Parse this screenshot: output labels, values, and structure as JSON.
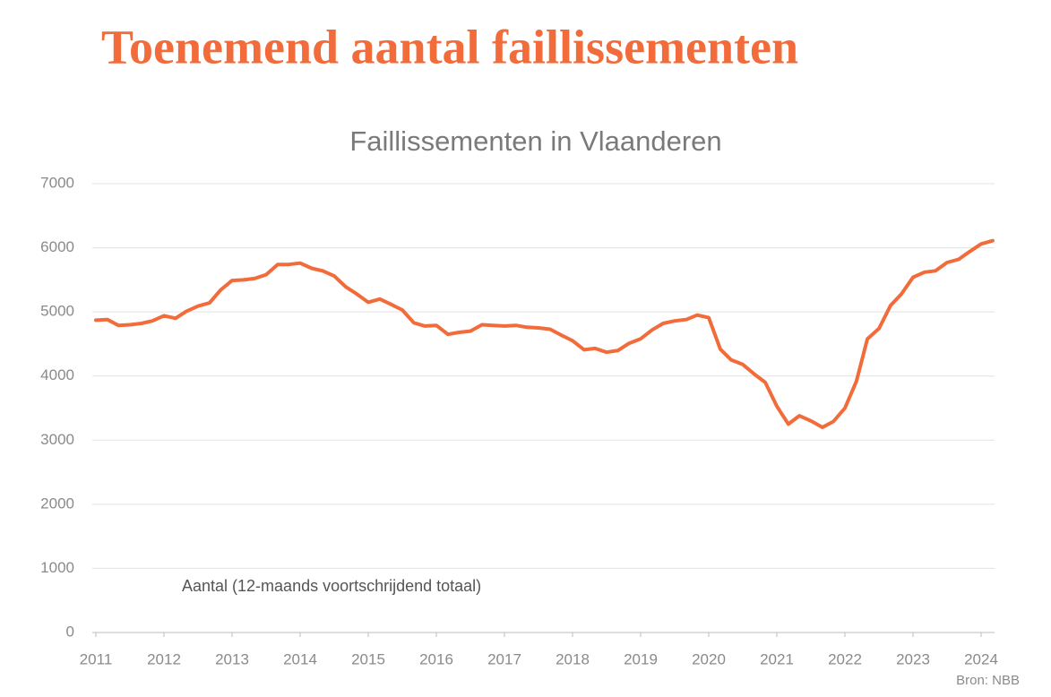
{
  "chart_data": {
    "type": "line",
    "heading": "Toenemend aantal faillissementen",
    "title": "Faillissementen in Vlaanderen",
    "annotation": "Aantal (12-maands voortschrijdend totaal)",
    "source": "Bron: NBB",
    "color": "#f26b3a",
    "x": [
      2011.0,
      2011.17,
      2011.33,
      2011.5,
      2011.67,
      2011.83,
      2012.0,
      2012.17,
      2012.33,
      2012.5,
      2012.67,
      2012.83,
      2013.0,
      2013.17,
      2013.33,
      2013.5,
      2013.67,
      2013.83,
      2014.0,
      2014.17,
      2014.33,
      2014.5,
      2014.67,
      2014.83,
      2015.0,
      2015.17,
      2015.33,
      2015.5,
      2015.67,
      2015.83,
      2016.0,
      2016.17,
      2016.33,
      2016.5,
      2016.67,
      2016.83,
      2017.0,
      2017.17,
      2017.33,
      2017.5,
      2017.67,
      2017.83,
      2018.0,
      2018.17,
      2018.33,
      2018.5,
      2018.67,
      2018.83,
      2019.0,
      2019.17,
      2019.33,
      2019.5,
      2019.67,
      2019.83,
      2020.0,
      2020.17,
      2020.33,
      2020.5,
      2020.67,
      2020.83,
      2021.0,
      2021.17,
      2021.33,
      2021.5,
      2021.67,
      2021.83,
      2022.0,
      2022.17,
      2022.33,
      2022.5,
      2022.67,
      2022.83,
      2023.0,
      2023.17,
      2023.33,
      2023.5,
      2023.67,
      2023.83,
      2024.0,
      2024.17
    ],
    "values": [
      4870,
      4880,
      4790,
      4800,
      4820,
      4860,
      4940,
      4900,
      5010,
      5090,
      5140,
      5340,
      5490,
      5500,
      5520,
      5580,
      5740,
      5740,
      5760,
      5680,
      5640,
      5560,
      5390,
      5280,
      5150,
      5200,
      5120,
      5030,
      4830,
      4780,
      4790,
      4650,
      4680,
      4700,
      4800,
      4790,
      4780,
      4790,
      4760,
      4750,
      4730,
      4640,
      4550,
      4410,
      4430,
      4370,
      4400,
      4510,
      4580,
      4720,
      4820,
      4860,
      4880,
      4950,
      4910,
      4420,
      4250,
      4180,
      4030,
      3900,
      3530,
      3250,
      3380,
      3300,
      3200,
      3290,
      3500,
      3920,
      4580,
      4740,
      5100,
      5280,
      5540,
      5620,
      5640,
      5770,
      5820,
      5940,
      6060,
      6110
    ],
    "xlim": [
      2011,
      2024.2
    ],
    "xticks": [
      2011,
      2012,
      2013,
      2014,
      2015,
      2016,
      2017,
      2018,
      2019,
      2020,
      2021,
      2022,
      2023,
      2024
    ],
    "ylim": [
      0,
      7000
    ],
    "yticks": [
      0,
      1000,
      2000,
      3000,
      4000,
      5000,
      6000,
      7000
    ],
    "grid": true
  }
}
